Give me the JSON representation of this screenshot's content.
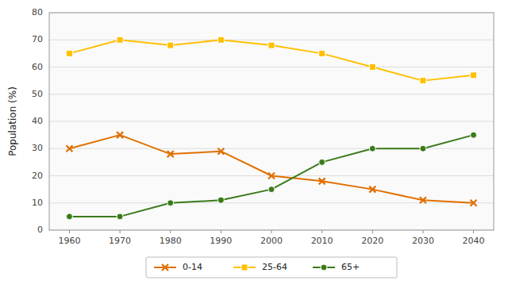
{
  "chart_data": {
    "type": "line",
    "y_label": "Population (%)",
    "x": [
      1960,
      1970,
      1980,
      1990,
      2000,
      2010,
      2020,
      2030,
      2040
    ],
    "series": [
      {
        "name": "0-14",
        "color": "#E07000",
        "marker": "x",
        "values": [
          30,
          35,
          28,
          29,
          20,
          18,
          15,
          11,
          10
        ]
      },
      {
        "name": "25-64",
        "color": "#FFC000",
        "marker": "square",
        "values": [
          65,
          70,
          68,
          70,
          68,
          65,
          60,
          55,
          57
        ]
      },
      {
        "name": "65+",
        "color": "#3A7A1A",
        "marker": "circle",
        "values": [
          5,
          5,
          10,
          11,
          15,
          25,
          30,
          30,
          35
        ]
      }
    ],
    "xlim": [
      1956,
      2044
    ],
    "xticks": [
      1960,
      1970,
      1980,
      1990,
      2000,
      2010,
      2020,
      2030,
      2040
    ],
    "ylim": [
      0,
      80
    ],
    "yticks": [
      0,
      10,
      20,
      30,
      40,
      50,
      60,
      70,
      80
    ],
    "grid": true,
    "legend": "bottom"
  }
}
